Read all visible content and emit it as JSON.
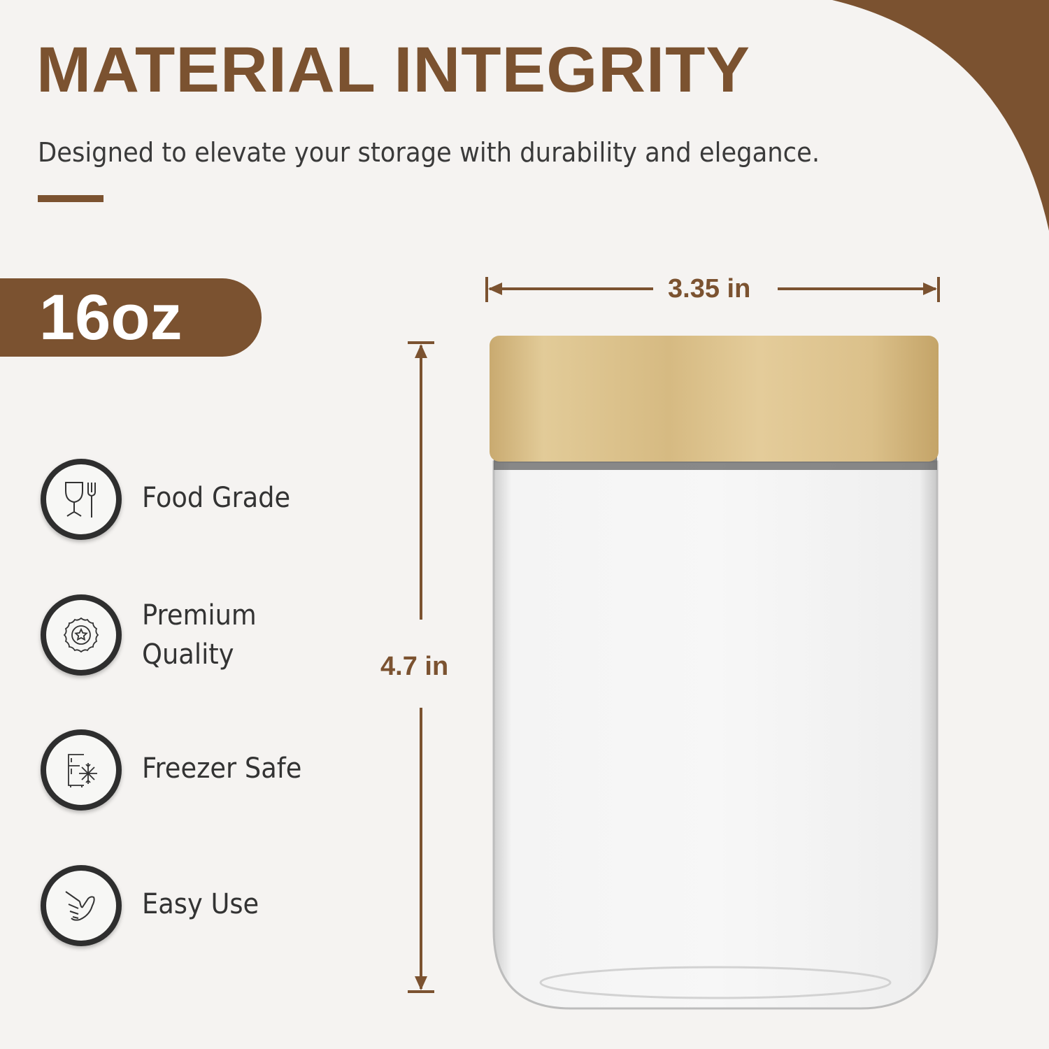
{
  "header": {
    "title": "MATERIAL INTEGRITY",
    "subtitle": "Designed to elevate your storage with durability and elegance."
  },
  "capacity_badge": "16oz",
  "features": [
    {
      "label": "Food Grade",
      "icon": "glass-fork-icon"
    },
    {
      "label_line1": "Premium",
      "label_line2": "Quality",
      "icon": "star-seal-icon"
    },
    {
      "label": "Freezer Safe",
      "icon": "fridge-snowflake-icon"
    },
    {
      "label": "Easy Use",
      "icon": "hand-gesture-icon"
    }
  ],
  "dimensions": {
    "width": "3.35 in",
    "height": "4.7 in"
  },
  "colors": {
    "accent": "#7b5230",
    "background": "#f5f3f1",
    "text": "#333333",
    "lid": "#d9bf8a"
  }
}
